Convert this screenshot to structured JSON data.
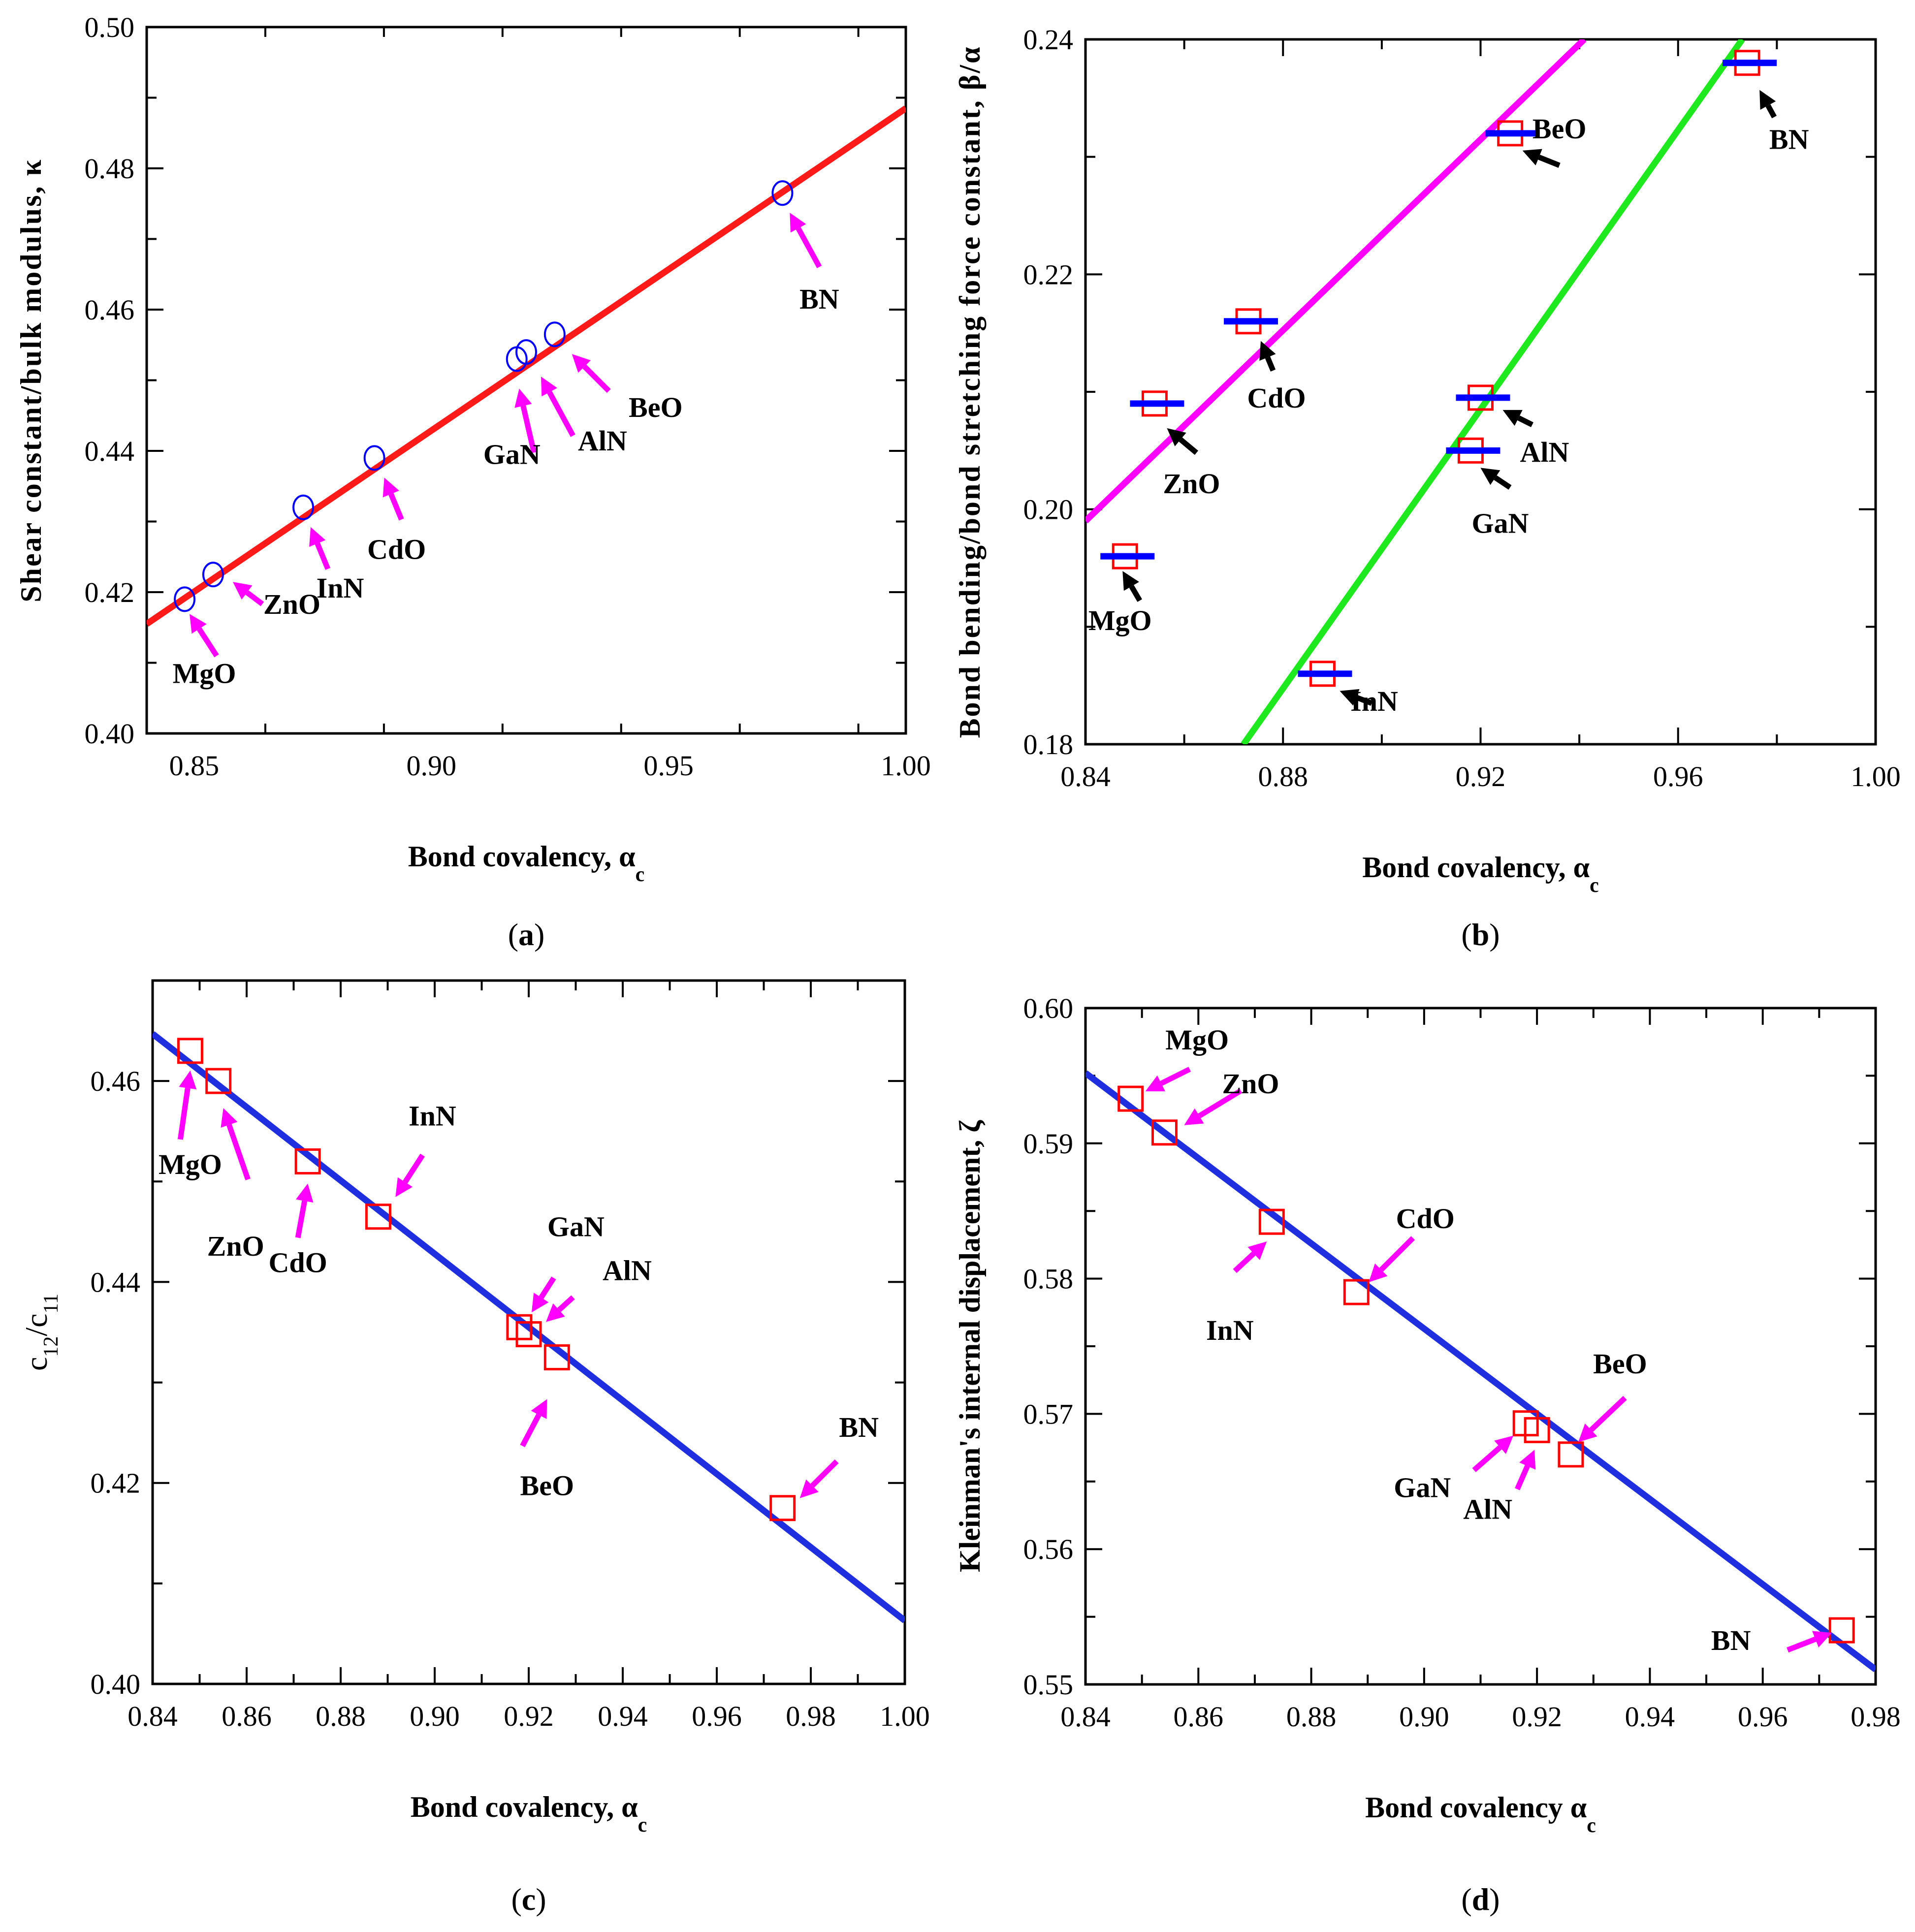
{
  "colors": {
    "fit_red": "#ff1a1a",
    "fit_magenta": "#ff00ff",
    "fit_green": "#1ee81e",
    "fit_blue": "#1f2fe0",
    "marker_red": "#ff0000",
    "marker_blue": "#0000ff",
    "arrow_magenta": "#ff00ff",
    "arrow_black": "#000000"
  },
  "chart_data": [
    {
      "panel": "(a)",
      "caption_letter": "a",
      "type": "scatter",
      "xlabel": "Bond covalency, α",
      "xlabel_sub": "c",
      "ylabel": "Shear constant/bulk modulus, κ",
      "xlim": [
        0.84,
        1.0
      ],
      "ylim": [
        0.4,
        0.5
      ],
      "xticks": [
        0.85,
        0.9,
        0.95,
        1.0
      ],
      "xtick_labels": [
        "0.85",
        "0.90",
        "0.95",
        "1.00"
      ],
      "yticks": [
        0.4,
        0.42,
        0.44,
        0.46,
        0.48,
        0.5
      ],
      "ytick_labels": [
        "0.40",
        "0.42",
        "0.44",
        "0.46",
        "0.48",
        "0.50"
      ],
      "marker": "circle",
      "arrow_color": "magenta",
      "points": [
        {
          "label": "MgO",
          "x": 0.848,
          "y": 0.419
        },
        {
          "label": "ZnO",
          "x": 0.854,
          "y": 0.4225
        },
        {
          "label": "InN",
          "x": 0.873,
          "y": 0.432
        },
        {
          "label": "CdO",
          "x": 0.888,
          "y": 0.439
        },
        {
          "label": "GaN",
          "x": 0.918,
          "y": 0.453
        },
        {
          "label": "AlN",
          "x": 0.92,
          "y": 0.454
        },
        {
          "label": "BeO",
          "x": 0.926,
          "y": 0.4565
        },
        {
          "label": "BN",
          "x": 0.974,
          "y": 0.4765
        }
      ],
      "fit_lines": [
        {
          "color": "red",
          "x": [
            0.84,
            1.0
          ],
          "y": [
            0.4155,
            0.4885
          ]
        }
      ]
    },
    {
      "panel": "(b)",
      "caption_letter": "b",
      "type": "scatter",
      "xlabel": "Bond covalency, α",
      "xlabel_sub": "c",
      "ylabel": "Bond bending/bond stretching force constant, β/α",
      "xlim": [
        0.84,
        1.0
      ],
      "ylim": [
        0.18,
        0.24
      ],
      "xticks": [
        0.84,
        0.88,
        0.92,
        0.96,
        1.0
      ],
      "xtick_labels": [
        "0.84",
        "0.88",
        "0.92",
        "0.96",
        "1.00"
      ],
      "yticks": [
        0.18,
        0.2,
        0.22,
        0.24
      ],
      "ytick_labels": [
        "0.18",
        "0.20",
        "0.22",
        "0.24"
      ],
      "marker": "square_with_bar",
      "arrow_color": "black",
      "points": [
        {
          "label": "MgO",
          "x": 0.848,
          "y": 0.196
        },
        {
          "label": "ZnO",
          "x": 0.854,
          "y": 0.209
        },
        {
          "label": "CdO",
          "x": 0.873,
          "y": 0.216
        },
        {
          "label": "InN",
          "x": 0.888,
          "y": 0.186
        },
        {
          "label": "GaN",
          "x": 0.918,
          "y": 0.205
        },
        {
          "label": "AlN",
          "x": 0.92,
          "y": 0.2095
        },
        {
          "label": "BeO",
          "x": 0.926,
          "y": 0.232
        },
        {
          "label": "BN",
          "x": 0.974,
          "y": 0.238
        }
      ],
      "fit_lines": [
        {
          "color": "magenta",
          "x": [
            0.84,
            0.941
          ],
          "y": [
            0.199,
            0.24
          ]
        },
        {
          "color": "green",
          "x": [
            0.872,
            0.973
          ],
          "y": [
            0.18,
            0.24
          ]
        }
      ]
    },
    {
      "panel": "(c)",
      "caption_letter": "c",
      "type": "scatter",
      "xlabel": "Bond covalency, α",
      "xlabel_sub": "c",
      "ylabel": "c",
      "ylabel_parts": [
        "c",
        "12",
        "/c",
        "11"
      ],
      "xlim": [
        0.84,
        1.0
      ],
      "ylim": [
        0.4,
        0.47
      ],
      "xticks": [
        0.84,
        0.86,
        0.88,
        0.9,
        0.92,
        0.94,
        0.96,
        0.98,
        1.0
      ],
      "xtick_labels": [
        "0.84",
        "0.86",
        "0.88",
        "0.90",
        "0.92",
        "0.94",
        "0.96",
        "0.98",
        "1.00"
      ],
      "yticks": [
        0.4,
        0.42,
        0.44,
        0.46
      ],
      "ytick_labels": [
        "0.40",
        "0.42",
        "0.44",
        "0.46"
      ],
      "marker": "square",
      "arrow_color": "magenta",
      "points": [
        {
          "label": "MgO",
          "x": 0.848,
          "y": 0.463
        },
        {
          "label": "ZnO",
          "x": 0.854,
          "y": 0.46
        },
        {
          "label": "CdO",
          "x": 0.873,
          "y": 0.452
        },
        {
          "label": "InN",
          "x": 0.888,
          "y": 0.4465
        },
        {
          "label": "GaN",
          "x": 0.918,
          "y": 0.4355
        },
        {
          "label": "AlN",
          "x": 0.92,
          "y": 0.4348
        },
        {
          "label": "BeO",
          "x": 0.926,
          "y": 0.4325
        },
        {
          "label": "BN",
          "x": 0.974,
          "y": 0.4175
        }
      ],
      "fit_lines": [
        {
          "color": "blue",
          "x": [
            0.84,
            1.0
          ],
          "y": [
            0.4647,
            0.4063
          ]
        }
      ]
    },
    {
      "panel": "(d)",
      "caption_letter": "d",
      "type": "scatter",
      "xlabel": "Bond covalency α",
      "xlabel_sub": "c",
      "ylabel": "Kleinman's internal displacement, ζ",
      "xlim": [
        0.84,
        0.98
      ],
      "ylim": [
        0.55,
        0.6
      ],
      "xticks": [
        0.84,
        0.86,
        0.88,
        0.9,
        0.92,
        0.94,
        0.96,
        0.98
      ],
      "xtick_labels": [
        "0.84",
        "0.86",
        "0.88",
        "0.90",
        "0.92",
        "0.94",
        "0.96",
        "0.98"
      ],
      "yticks": [
        0.55,
        0.56,
        0.57,
        0.58,
        0.59,
        0.6
      ],
      "ytick_labels": [
        "0.55",
        "0.56",
        "0.57",
        "0.58",
        "0.59",
        "0.60"
      ],
      "marker": "square",
      "arrow_color": "magenta",
      "points": [
        {
          "label": "MgO",
          "x": 0.848,
          "y": 0.5933
        },
        {
          "label": "ZnO",
          "x": 0.854,
          "y": 0.5908
        },
        {
          "label": "InN",
          "x": 0.873,
          "y": 0.5842
        },
        {
          "label": "CdO",
          "x": 0.888,
          "y": 0.579
        },
        {
          "label": "GaN",
          "x": 0.918,
          "y": 0.5693
        },
        {
          "label": "AlN",
          "x": 0.92,
          "y": 0.5688
        },
        {
          "label": "BeO",
          "x": 0.926,
          "y": 0.567
        },
        {
          "label": "BN",
          "x": 0.974,
          "y": 0.554
        }
      ],
      "fit_lines": [
        {
          "color": "blue",
          "x": [
            0.84,
            0.98
          ],
          "y": [
            0.5952,
            0.5511
          ]
        }
      ]
    }
  ]
}
